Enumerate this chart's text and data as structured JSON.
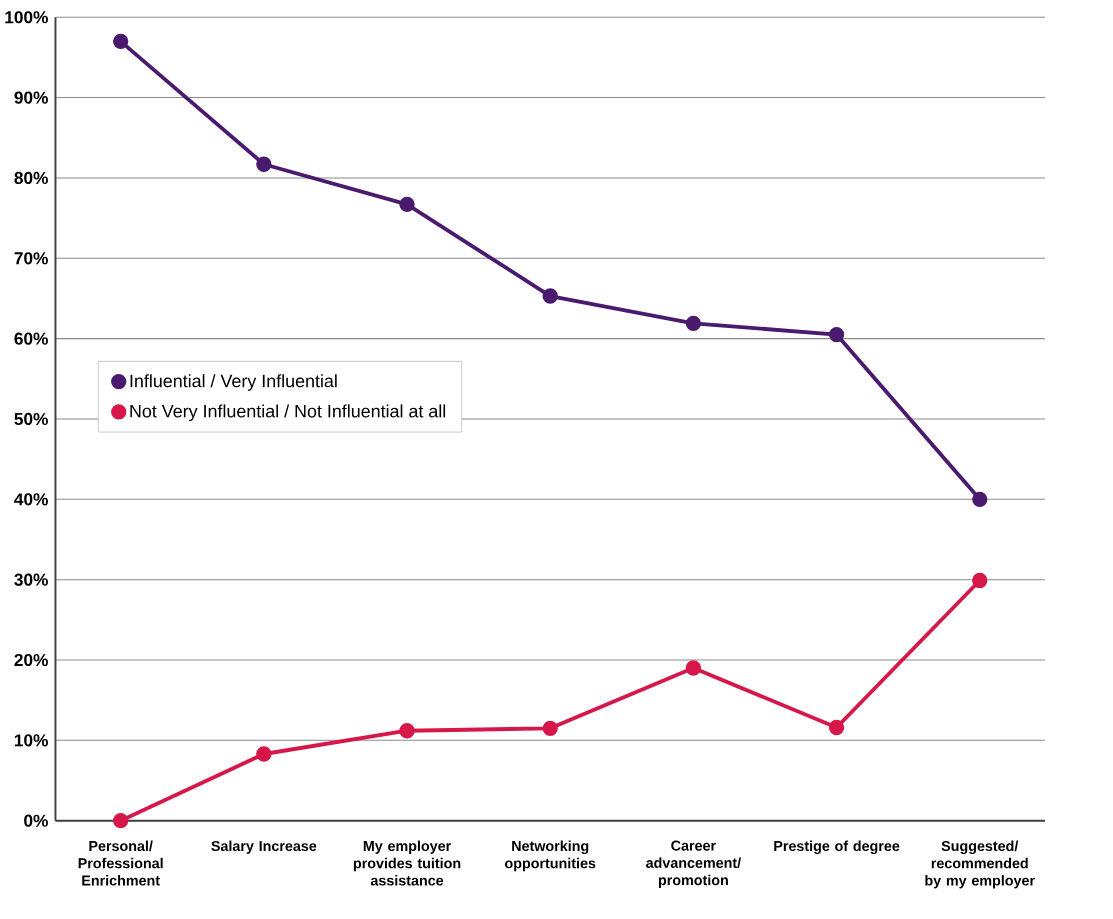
{
  "chart_data": {
    "type": "line",
    "categories": [
      "Personal/ Professional Enrichment",
      "Salary Increase",
      "My employer provides tuition assistance",
      "Networking opportunities",
      "Career advancement/ promotion",
      "Prestige of degree",
      "Suggested/ recommended by my employer"
    ],
    "series": [
      {
        "name": "Influential / Very Influential",
        "color": "#4a1a6e",
        "values": [
          97,
          81.7,
          76.7,
          65.3,
          61.9,
          60.5,
          40
        ]
      },
      {
        "name": "Not Very Influential / Not Influential at all",
        "color": "#d6174a",
        "values": [
          0,
          8.3,
          11.2,
          11.5,
          19,
          11.6,
          29.9
        ]
      }
    ],
    "ylim": [
      0,
      100
    ],
    "yticks": [
      {
        "value": 0,
        "label": "0%"
      },
      {
        "value": 10,
        "label": "10%"
      },
      {
        "value": 20,
        "label": "20%"
      },
      {
        "value": 30,
        "label": "30%"
      },
      {
        "value": 40,
        "label": "40%"
      },
      {
        "value": 50,
        "label": "50%"
      },
      {
        "value": 60,
        "label": "60%"
      },
      {
        "value": 70,
        "label": "70%"
      },
      {
        "value": 80,
        "label": "80%"
      },
      {
        "value": 90,
        "label": "90%"
      },
      {
        "value": 100,
        "label": "100%"
      }
    ],
    "grid": "y",
    "legend": "left",
    "marker": "circle",
    "line_style": "solid"
  }
}
